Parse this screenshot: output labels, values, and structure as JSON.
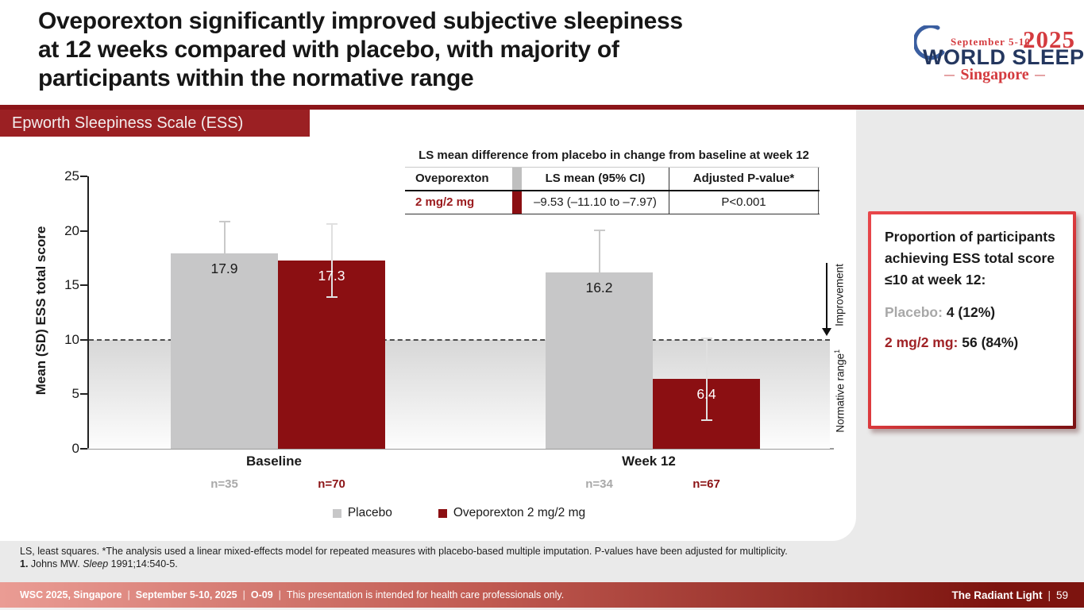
{
  "slide": {
    "title_lines": [
      "Oveporexton significantly improved subjective sleepiness",
      "at 12 weeks compared with placebo, with majority of",
      "participants within the normative range"
    ]
  },
  "logo": {
    "dates": "September 5-10",
    "year": "2025",
    "name": "WORLD SLEEP",
    "city": "Singapore"
  },
  "section_badge": "Epworth Sleepiness Scale (ESS)",
  "stats_table": {
    "title": "LS mean difference from placebo in change from baseline at week 12",
    "headers": [
      "Oveporexton",
      "LS mean (95% CI)",
      "Adjusted P-value*"
    ],
    "row": {
      "group": "2 mg/2 mg",
      "ls_mean": "–9.53 (–11.10 to –7.97)",
      "p_value": "P<0.001"
    }
  },
  "chart_data": {
    "type": "bar",
    "ylabel": "Mean (SD) ESS total score",
    "ylim": [
      0,
      25
    ],
    "yticks": [
      0,
      5,
      10,
      15,
      20,
      25
    ],
    "categories": [
      "Baseline",
      "Week 12"
    ],
    "series": [
      {
        "name": "Placebo",
        "color": "#c7c7c8",
        "values": [
          17.9,
          16.2
        ],
        "sd_upper_est": [
          3.0,
          3.9
        ],
        "n": [
          "n=35",
          "n=34"
        ],
        "value_label_color": "#1a1a1a",
        "n_color": "#a9a9a9",
        "error_color": "#c9c9c9",
        "error_both_ends": false
      },
      {
        "name": "Oveporexton 2 mg/2 mg",
        "color": "#8b0f12",
        "values": [
          17.3,
          6.4
        ],
        "sd_upper_est": [
          3.4,
          3.8
        ],
        "n": [
          "n=70",
          "n=67"
        ],
        "value_label_color": "#ffffff",
        "n_color": "#8c1416",
        "error_color": "#e0e0e0",
        "error_both_ends": true
      }
    ],
    "reference_line": {
      "value": 10,
      "style": "dashed"
    },
    "normative_band": [
      0,
      10
    ],
    "legend_position": "bottom",
    "grid": false
  },
  "annotations": {
    "improvement": "Improvement",
    "normative": "Normative range",
    "normative_sup": "1"
  },
  "side_panel": {
    "heading": "Proportion of participants achieving ESS total score ≤10 at week 12:",
    "rows": [
      {
        "label": "Placebo: ",
        "value": "4 (12%)"
      },
      {
        "label": "2 mg/2 mg: ",
        "value": "56 (84%)"
      }
    ]
  },
  "footnotes": {
    "line1": "LS, least squares. *The analysis used a linear mixed-effects model for repeated measures with placebo-based multiple imputation. P-values have been adjusted for multiplicity.",
    "ref_num": "1. ",
    "ref_a": "Johns MW. ",
    "ref_journal": "Sleep",
    "ref_b": " 1991;14:540-5."
  },
  "footer": {
    "separator": "|",
    "event": "WSC 2025, Singapore",
    "dates": "September 5-10, 2025",
    "session": "O-09",
    "disclaimer": "This presentation is intended for health care professionals only.",
    "brand": "The Radiant Light",
    "page": "59"
  }
}
